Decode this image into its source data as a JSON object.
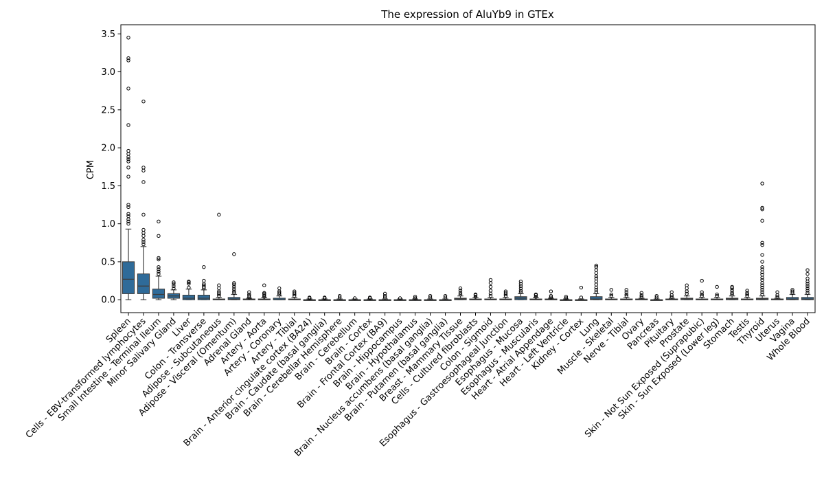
{
  "chart_data": {
    "type": "box",
    "title": "The expression of AluYb9 in GTEx",
    "xlabel": "",
    "ylabel": "CPM",
    "ylim": [
      -0.17,
      3.62
    ],
    "yticks": [
      0.0,
      0.5,
      1.0,
      1.5,
      2.0,
      2.5,
      3.0,
      3.5
    ],
    "box_color": "#2f6b99",
    "grid": false,
    "categories": [
      {
        "name": "Spleen",
        "q1": 0.08,
        "median": 0.27,
        "q3": 0.5,
        "whisker_low": 0.0,
        "whisker_high": 0.93,
        "outliers": [
          1.0,
          1.03,
          1.06,
          1.1,
          1.13,
          1.22,
          1.25,
          1.62,
          1.74,
          1.82,
          1.85,
          1.88,
          1.92,
          1.96,
          2.3,
          2.78,
          3.15,
          3.18,
          3.45
        ]
      },
      {
        "name": "Cells - EBV-transformed lymphocytes",
        "q1": 0.08,
        "median": 0.18,
        "q3": 0.34,
        "whisker_low": 0.0,
        "whisker_high": 0.7,
        "outliers": [
          0.73,
          0.76,
          0.79,
          0.84,
          0.88,
          0.92,
          1.12,
          1.55,
          1.7,
          1.74,
          2.61
        ]
      },
      {
        "name": "Small Intestine - Terminal Ileum",
        "q1": 0.02,
        "median": 0.07,
        "q3": 0.14,
        "whisker_low": 0.0,
        "whisker_high": 0.31,
        "outliers": [
          0.34,
          0.37,
          0.4,
          0.43,
          0.53,
          0.55,
          0.84,
          1.03
        ]
      },
      {
        "name": "Minor Salivary Gland",
        "q1": 0.02,
        "median": 0.05,
        "q3": 0.08,
        "whisker_low": 0.0,
        "whisker_high": 0.13,
        "outliers": [
          0.15,
          0.18,
          0.21,
          0.23
        ]
      },
      {
        "name": "Liver",
        "q1": 0.0,
        "median": 0.02,
        "q3": 0.06,
        "whisker_low": 0.0,
        "whisker_high": 0.14,
        "outliers": [
          0.16,
          0.21,
          0.23,
          0.24
        ]
      },
      {
        "name": "Colon - Transverse",
        "q1": 0.0,
        "median": 0.02,
        "q3": 0.06,
        "whisker_low": 0.0,
        "whisker_high": 0.13,
        "outliers": [
          0.15,
          0.17,
          0.19,
          0.21,
          0.25,
          0.43
        ]
      },
      {
        "name": "Adipose - Subcutaneous",
        "q1": 0.0,
        "median": 0.0,
        "q3": 0.01,
        "whisker_low": 0.0,
        "whisker_high": 0.03,
        "outliers": [
          0.05,
          0.07,
          0.09,
          0.11,
          0.15,
          0.19,
          1.12
        ]
      },
      {
        "name": "Adipose - Visceral (Omentum)",
        "q1": 0.0,
        "median": 0.01,
        "q3": 0.03,
        "whisker_low": 0.0,
        "whisker_high": 0.07,
        "outliers": [
          0.09,
          0.11,
          0.14,
          0.17,
          0.2,
          0.22,
          0.6
        ]
      },
      {
        "name": "Adrenal Gland",
        "q1": 0.0,
        "median": 0.0,
        "q3": 0.01,
        "whisker_low": 0.0,
        "whisker_high": 0.02,
        "outliers": [
          0.03,
          0.05,
          0.07,
          0.1
        ]
      },
      {
        "name": "Artery - Aorta",
        "q1": 0.0,
        "median": 0.0,
        "q3": 0.01,
        "whisker_low": 0.0,
        "whisker_high": 0.03,
        "outliers": [
          0.04,
          0.06,
          0.08,
          0.09,
          0.19
        ]
      },
      {
        "name": "Artery - Coronary",
        "q1": 0.0,
        "median": 0.0,
        "q3": 0.02,
        "whisker_low": 0.0,
        "whisker_high": 0.05,
        "outliers": [
          0.07,
          0.09,
          0.11,
          0.15
        ]
      },
      {
        "name": "Artery - Tibial",
        "q1": 0.0,
        "median": 0.0,
        "q3": 0.01,
        "whisker_low": 0.0,
        "whisker_high": 0.03,
        "outliers": [
          0.05,
          0.07,
          0.09,
          0.11
        ]
      },
      {
        "name": "Brain - Anterior cingulate cortex (BA24)",
        "q1": 0.0,
        "median": 0.0,
        "q3": 0.0,
        "whisker_low": 0.0,
        "whisker_high": 0.01,
        "outliers": [
          0.02,
          0.03
        ]
      },
      {
        "name": "Brain - Caudate (basal ganglia)",
        "q1": 0.0,
        "median": 0.0,
        "q3": 0.0,
        "whisker_low": 0.0,
        "whisker_high": 0.01,
        "outliers": [
          0.02,
          0.03
        ]
      },
      {
        "name": "Brain - Cerebellar Hemisphere",
        "q1": 0.0,
        "median": 0.0,
        "q3": 0.0,
        "whisker_low": 0.0,
        "whisker_high": 0.01,
        "outliers": [
          0.03,
          0.05
        ]
      },
      {
        "name": "Brain - Cerebellum",
        "q1": 0.0,
        "median": 0.0,
        "q3": 0.0,
        "whisker_low": 0.0,
        "whisker_high": 0.01,
        "outliers": [
          0.02
        ]
      },
      {
        "name": "Brain - Cortex",
        "q1": 0.0,
        "median": 0.0,
        "q3": 0.0,
        "whisker_low": 0.0,
        "whisker_high": 0.01,
        "outliers": [
          0.02,
          0.03
        ]
      },
      {
        "name": "Brain - Frontal Cortex (BA9)",
        "q1": 0.0,
        "median": 0.0,
        "q3": 0.0,
        "whisker_low": 0.0,
        "whisker_high": 0.01,
        "outliers": [
          0.03,
          0.05,
          0.08
        ]
      },
      {
        "name": "Brain - Hippocampus",
        "q1": 0.0,
        "median": 0.0,
        "q3": 0.0,
        "whisker_low": 0.0,
        "whisker_high": 0.01,
        "outliers": [
          0.02
        ]
      },
      {
        "name": "Brain - Hypothalamus",
        "q1": 0.0,
        "median": 0.0,
        "q3": 0.0,
        "whisker_low": 0.0,
        "whisker_high": 0.01,
        "outliers": [
          0.02,
          0.04
        ]
      },
      {
        "name": "Brain - Nucleus accumbens (basal ganglia)",
        "q1": 0.0,
        "median": 0.0,
        "q3": 0.0,
        "whisker_low": 0.0,
        "whisker_high": 0.01,
        "outliers": [
          0.03,
          0.05
        ]
      },
      {
        "name": "Brain - Putamen (basal ganglia)",
        "q1": 0.0,
        "median": 0.0,
        "q3": 0.0,
        "whisker_low": 0.0,
        "whisker_high": 0.01,
        "outliers": [
          0.03,
          0.05
        ]
      },
      {
        "name": "Breast - Mammary Tissue",
        "q1": 0.0,
        "median": 0.01,
        "q3": 0.02,
        "whisker_low": 0.0,
        "whisker_high": 0.05,
        "outliers": [
          0.07,
          0.09,
          0.12,
          0.15
        ]
      },
      {
        "name": "Cells - Cultured fibroblasts",
        "q1": 0.0,
        "median": 0.0,
        "q3": 0.01,
        "whisker_low": 0.0,
        "whisker_high": 0.03,
        "outliers": [
          0.04,
          0.06,
          0.07
        ]
      },
      {
        "name": "Colon - Sigmoid",
        "q1": 0.0,
        "median": 0.0,
        "q3": 0.01,
        "whisker_low": 0.0,
        "whisker_high": 0.03,
        "outliers": [
          0.05,
          0.08,
          0.12,
          0.17,
          0.22,
          0.26
        ]
      },
      {
        "name": "Esophagus - Gastroesophageal Junction",
        "q1": 0.0,
        "median": 0.0,
        "q3": 0.01,
        "whisker_low": 0.0,
        "whisker_high": 0.03,
        "outliers": [
          0.05,
          0.07,
          0.09,
          0.11
        ]
      },
      {
        "name": "Esophagus - Mucosa",
        "q1": 0.0,
        "median": 0.02,
        "q3": 0.04,
        "whisker_low": 0.0,
        "whisker_high": 0.08,
        "outliers": [
          0.1,
          0.12,
          0.15,
          0.18,
          0.21,
          0.24
        ]
      },
      {
        "name": "Esophagus - Muscularis",
        "q1": 0.0,
        "median": 0.0,
        "q3": 0.01,
        "whisker_low": 0.0,
        "whisker_high": 0.03,
        "outliers": [
          0.04,
          0.06,
          0.07
        ]
      },
      {
        "name": "Heart - Atrial Appendage",
        "q1": 0.0,
        "median": 0.0,
        "q3": 0.01,
        "whisker_low": 0.0,
        "whisker_high": 0.02,
        "outliers": [
          0.03,
          0.05,
          0.11
        ]
      },
      {
        "name": "Heart - Left Ventricle",
        "q1": 0.0,
        "median": 0.0,
        "q3": 0.0,
        "whisker_low": 0.0,
        "whisker_high": 0.01,
        "outliers": [
          0.02,
          0.04
        ]
      },
      {
        "name": "Kidney - Cortex",
        "q1": 0.0,
        "median": 0.0,
        "q3": 0.0,
        "whisker_low": 0.0,
        "whisker_high": 0.01,
        "outliers": [
          0.03,
          0.16
        ]
      },
      {
        "name": "Lung",
        "q1": 0.0,
        "median": 0.01,
        "q3": 0.04,
        "whisker_low": 0.0,
        "whisker_high": 0.08,
        "outliers": [
          0.1,
          0.13,
          0.16,
          0.2,
          0.24,
          0.28,
          0.31,
          0.35,
          0.39,
          0.43,
          0.45
        ]
      },
      {
        "name": "Muscle - Skeletal",
        "q1": 0.0,
        "median": 0.0,
        "q3": 0.01,
        "whisker_low": 0.0,
        "whisker_high": 0.03,
        "outliers": [
          0.05,
          0.07,
          0.13
        ]
      },
      {
        "name": "Nerve - Tibial",
        "q1": 0.0,
        "median": 0.0,
        "q3": 0.01,
        "whisker_low": 0.0,
        "whisker_high": 0.03,
        "outliers": [
          0.05,
          0.07,
          0.1,
          0.13
        ]
      },
      {
        "name": "Ovary",
        "q1": 0.0,
        "median": 0.0,
        "q3": 0.01,
        "whisker_low": 0.0,
        "whisker_high": 0.02,
        "outliers": [
          0.04,
          0.06,
          0.09
        ]
      },
      {
        "name": "Pancreas",
        "q1": 0.0,
        "median": 0.0,
        "q3": 0.0,
        "whisker_low": 0.0,
        "whisker_high": 0.01,
        "outliers": [
          0.03,
          0.05
        ]
      },
      {
        "name": "Pituitary",
        "q1": 0.0,
        "median": 0.0,
        "q3": 0.01,
        "whisker_low": 0.0,
        "whisker_high": 0.02,
        "outliers": [
          0.04,
          0.06,
          0.1
        ]
      },
      {
        "name": "Prostate",
        "q1": 0.0,
        "median": 0.01,
        "q3": 0.02,
        "whisker_low": 0.0,
        "whisker_high": 0.05,
        "outliers": [
          0.08,
          0.11,
          0.15,
          0.19
        ]
      },
      {
        "name": "Skin - Not Sun Exposed (Suprapubic)",
        "q1": 0.0,
        "median": 0.0,
        "q3": 0.01,
        "whisker_low": 0.0,
        "whisker_high": 0.03,
        "outliers": [
          0.05,
          0.07,
          0.1,
          0.25
        ]
      },
      {
        "name": "Skin - Sun Exposed (Lower leg)",
        "q1": 0.0,
        "median": 0.0,
        "q3": 0.01,
        "whisker_low": 0.0,
        "whisker_high": 0.03,
        "outliers": [
          0.05,
          0.07,
          0.17
        ]
      },
      {
        "name": "Stomach",
        "q1": 0.0,
        "median": 0.01,
        "q3": 0.02,
        "whisker_low": 0.0,
        "whisker_high": 0.05,
        "outliers": [
          0.07,
          0.09,
          0.12,
          0.15,
          0.17
        ]
      },
      {
        "name": "Testis",
        "q1": 0.0,
        "median": 0.0,
        "q3": 0.01,
        "whisker_low": 0.0,
        "whisker_high": 0.03,
        "outliers": [
          0.05,
          0.07,
          0.09,
          0.12
        ]
      },
      {
        "name": "Thyroid",
        "q1": 0.0,
        "median": 0.01,
        "q3": 0.02,
        "whisker_low": 0.0,
        "whisker_high": 0.05,
        "outliers": [
          0.07,
          0.1,
          0.13,
          0.16,
          0.19,
          0.22,
          0.26,
          0.29,
          0.33,
          0.36,
          0.4,
          0.43,
          0.5,
          0.59,
          0.72,
          0.75,
          1.04,
          1.19,
          1.21,
          1.53
        ]
      },
      {
        "name": "Uterus",
        "q1": 0.0,
        "median": 0.0,
        "q3": 0.01,
        "whisker_low": 0.0,
        "whisker_high": 0.02,
        "outliers": [
          0.04,
          0.06,
          0.1
        ]
      },
      {
        "name": "Vagina",
        "q1": 0.0,
        "median": 0.01,
        "q3": 0.03,
        "whisker_low": 0.0,
        "whisker_high": 0.07,
        "outliers": [
          0.09,
          0.11,
          0.13
        ]
      },
      {
        "name": "Whole Blood",
        "q1": 0.0,
        "median": 0.01,
        "q3": 0.03,
        "whisker_low": 0.0,
        "whisker_high": 0.07,
        "outliers": [
          0.09,
          0.12,
          0.15,
          0.18,
          0.21,
          0.24,
          0.28,
          0.34,
          0.39
        ]
      }
    ]
  }
}
